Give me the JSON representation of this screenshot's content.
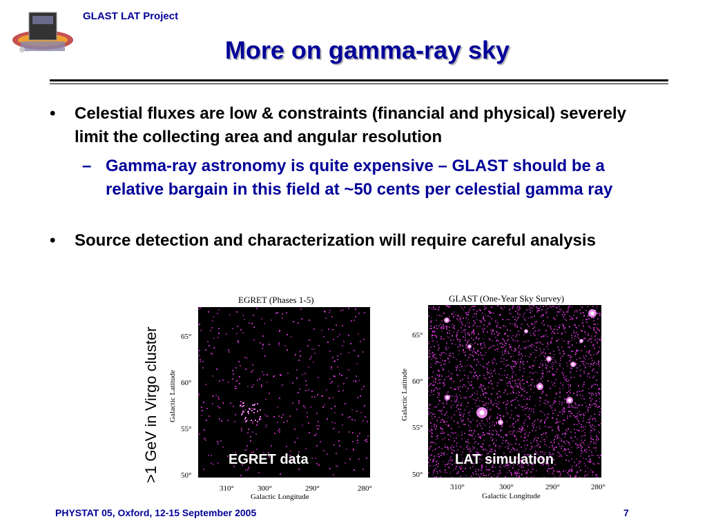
{
  "header": {
    "project": "GLAST LAT Project"
  },
  "title": "More on gamma-ray sky",
  "bullets": [
    {
      "mark": "•",
      "text": "Celestial fluxes are low & constraints (financial and physical) severely limit the collecting area and angular resolution"
    },
    {
      "mark": "–",
      "text": "Gamma-ray astronomy is quite expensive – GLAST should be a relative bargain in this field at ~50 cents per celestial gamma ray"
    },
    {
      "mark": "•",
      "text": "Source detection and characterization will require careful analysis"
    }
  ],
  "side_label": ">1 GeV in Virgo cluster",
  "panels": [
    {
      "title": "EGRET (Phases 1-5)",
      "caption": "EGRET data",
      "ylabel": "Galactic Latitude",
      "xlabel": "Galactic Longitude",
      "yticks": [
        "65°",
        "60°",
        "55°",
        "50°"
      ],
      "xticks": [
        "310°",
        "300°",
        "290°",
        "280°"
      ]
    },
    {
      "title": "GLAST (One-Year Sky Survey)",
      "caption": "LAT simulation",
      "ylabel": "Galactic Latitude",
      "xlabel": "Galactic Longitude",
      "yticks": [
        "65°",
        "60°",
        "55°",
        "50°"
      ],
      "xticks": [
        "310°",
        "300°",
        "290°",
        "280°"
      ]
    }
  ],
  "footer": {
    "text": "PHYSTAT 05, Oxford, 12-15 September 2005",
    "page": "7"
  },
  "colors": {
    "accent": "#000099",
    "sky_count": "#cc33cc"
  }
}
